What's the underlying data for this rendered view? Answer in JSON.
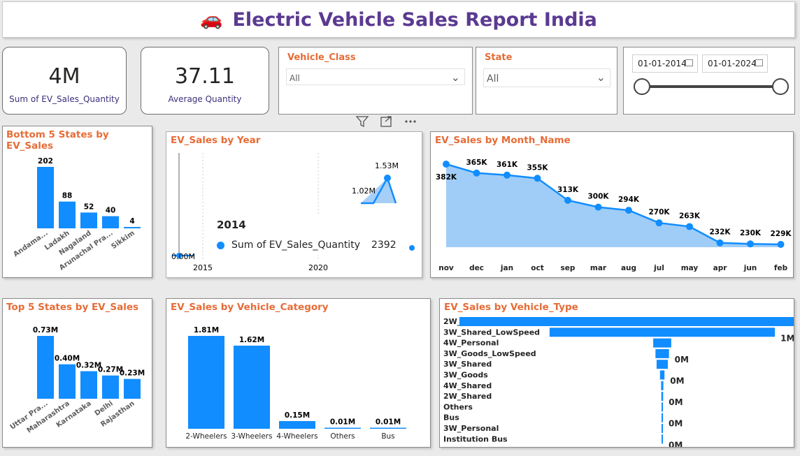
{
  "header": {
    "icon": "🚗",
    "title": "Electric Vehicle Sales Report India"
  },
  "cards": [
    {
      "value": "4M",
      "label": "Sum of EV_Sales_Quantity"
    },
    {
      "value": "37.11",
      "label": "Average Quantity"
    }
  ],
  "slicers": {
    "vehicle_class": {
      "title": "Vehicle_Class",
      "value": "All"
    },
    "state": {
      "title": "State",
      "value": "All"
    },
    "date": {
      "start": "01-01-2014",
      "end": "01-01-2024"
    }
  },
  "visual_header_icons": [
    "filter-icon",
    "focus-mode-icon",
    "more-options-icon"
  ],
  "colors": {
    "accent": "#118dff",
    "title": "#e66c37",
    "header": "#5b3a91"
  },
  "chart_data": [
    {
      "id": "bottom5",
      "type": "bar",
      "title": "Bottom 5 States by EV_Sales",
      "categories": [
        "Andama...",
        "Ladakh",
        "Nagaland",
        "Arunachal Pra...",
        "Sikkim"
      ],
      "values": [
        202,
        88,
        52,
        40,
        4
      ],
      "labels": [
        "202",
        "88",
        "52",
        "40",
        "4"
      ]
    },
    {
      "id": "by_year",
      "type": "area",
      "title": "EV_Sales by Year",
      "visible_labels": [
        "1.02M",
        "1.53M",
        "0.00M"
      ],
      "tick_labels": [
        "2015",
        "2020"
      ],
      "tooltip": {
        "year": "2014",
        "series": "Sum of EV_Sales_Quantity",
        "value": "2392"
      }
    },
    {
      "id": "by_month",
      "type": "area",
      "title": "EV_Sales by Month_Name",
      "categories": [
        "nov",
        "dec",
        "jan",
        "oct",
        "sep",
        "mar",
        "aug",
        "jul",
        "may",
        "apr",
        "jun",
        "feb"
      ],
      "values": [
        382,
        365,
        361,
        355,
        313,
        300,
        294,
        270,
        263,
        232,
        230,
        229
      ],
      "labels": [
        "382K",
        "365K",
        "361K",
        "355K",
        "313K",
        "300K",
        "294K",
        "270K",
        "263K",
        "232K",
        "230K",
        "229K"
      ],
      "ylim": [
        0,
        420
      ]
    },
    {
      "id": "top5",
      "type": "bar",
      "title": "Top 5 States by EV_Sales",
      "categories": [
        "Uttar Pra...",
        "Maharashtra",
        "Karnataka",
        "Delhi",
        "Rajasthan"
      ],
      "values": [
        0.73,
        0.4,
        0.32,
        0.27,
        0.23
      ],
      "labels": [
        "0.73M",
        "0.40M",
        "0.32M",
        "0.27M",
        "0.23M"
      ]
    },
    {
      "id": "by_category",
      "type": "bar",
      "title": "EV_Sales by Vehicle_Category",
      "categories": [
        "2-Wheelers",
        "3-Wheelers",
        "4-Wheelers",
        "Others",
        "Bus"
      ],
      "values": [
        1.81,
        1.62,
        0.15,
        0.01,
        0.01
      ],
      "labels": [
        "1.81M",
        "1.62M",
        "0.15M",
        "0.01M",
        "0.01M"
      ]
    },
    {
      "id": "by_type",
      "type": "bar",
      "title": "EV_Sales by Vehicle_Type",
      "categories": [
        "2W_Personal",
        "3W_Shared_LowSpeed",
        "4W_Personal",
        "3W_Goods_LowSpeed",
        "3W_Shared",
        "3W_Goods",
        "4W_Shared",
        "2W_Shared",
        "Others",
        "Bus",
        "3W_Personal",
        "Institution Bus"
      ],
      "values": [
        1.8,
        1.0,
        0.08,
        0.06,
        0.05,
        0.02,
        0.01,
        0.008,
        0.005,
        0.004,
        0.003,
        0.001
      ],
      "labels": [
        "",
        "1M",
        "",
        "0M",
        "",
        "0M",
        "",
        "0M",
        "",
        "0M",
        "",
        "0M"
      ]
    }
  ]
}
